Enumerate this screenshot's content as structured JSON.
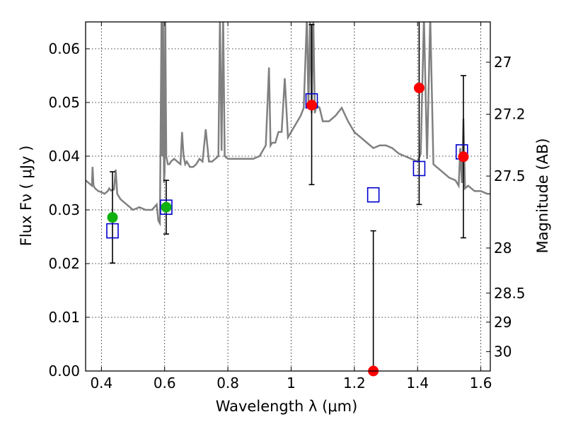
{
  "chart_data": {
    "type": "scatter",
    "title": "",
    "xlabel": "Wavelength  λ (μm)",
    "ylabel": "Flux  Fν  ( μJy )",
    "ylabel_right": "Magnitude (AB)",
    "xlim": [
      0.35,
      1.63
    ],
    "ylim": [
      0.0,
      0.065
    ],
    "grid": true,
    "x_ticks": [
      {
        "value": 0.4,
        "label": "0.4"
      },
      {
        "value": 0.6,
        "label": "0.6"
      },
      {
        "value": 0.8,
        "label": "0.8"
      },
      {
        "value": 1.0,
        "label": "1"
      },
      {
        "value": 1.2,
        "label": "1.2"
      },
      {
        "value": 1.4,
        "label": "1.4"
      },
      {
        "value": 1.6,
        "label": "1.6"
      }
    ],
    "y_ticks": [
      {
        "value": 0.0,
        "label": "0.00"
      },
      {
        "value": 0.01,
        "label": "0.01"
      },
      {
        "value": 0.02,
        "label": "0.02"
      },
      {
        "value": 0.03,
        "label": "0.03"
      },
      {
        "value": 0.04,
        "label": "0.04"
      },
      {
        "value": 0.05,
        "label": "0.05"
      },
      {
        "value": 0.06,
        "label": "0.06"
      }
    ],
    "mag_ticks": [
      {
        "value": 0.0575,
        "label": "27"
      },
      {
        "value": 0.0478,
        "label": "27.2"
      },
      {
        "value": 0.0363,
        "label": "27.5"
      },
      {
        "value": 0.0229,
        "label": "28"
      },
      {
        "value": 0.0145,
        "label": "28.5"
      },
      {
        "value": 0.0091,
        "label": "29"
      },
      {
        "value": 0.0036,
        "label": "30"
      }
    ],
    "spectrum": {
      "color": "#808080",
      "x": [
        0.35,
        0.36,
        0.37,
        0.372,
        0.375,
        0.38,
        0.39,
        0.4,
        0.41,
        0.42,
        0.425,
        0.43,
        0.44,
        0.445,
        0.45,
        0.46,
        0.47,
        0.48,
        0.49,
        0.5,
        0.52,
        0.54,
        0.56,
        0.575,
        0.58,
        0.585,
        0.59,
        0.592,
        0.595,
        0.598,
        0.6,
        0.602,
        0.605,
        0.61,
        0.615,
        0.62,
        0.63,
        0.65,
        0.655,
        0.66,
        0.665,
        0.67,
        0.68,
        0.69,
        0.7,
        0.71,
        0.72,
        0.73,
        0.74,
        0.75,
        0.76,
        0.77,
        0.775,
        0.78,
        0.785,
        0.79,
        0.8,
        0.82,
        0.84,
        0.86,
        0.88,
        0.9,
        0.92,
        0.93,
        0.935,
        0.94,
        0.95,
        0.96,
        0.97,
        0.98,
        0.99,
        1.0,
        1.01,
        1.02,
        1.03,
        1.04,
        1.05,
        1.055,
        1.06,
        1.065,
        1.07,
        1.075,
        1.08,
        1.09,
        1.1,
        1.12,
        1.14,
        1.16,
        1.18,
        1.2,
        1.22,
        1.24,
        1.26,
        1.28,
        1.3,
        1.32,
        1.34,
        1.36,
        1.38,
        1.4,
        1.41,
        1.42,
        1.43,
        1.44,
        1.45,
        1.46,
        1.48,
        1.5,
        1.52,
        1.53,
        1.535,
        1.54,
        1.545,
        1.55,
        1.56,
        1.58,
        1.6,
        1.62,
        1.63
      ],
      "y": [
        0.0355,
        0.035,
        0.0345,
        0.038,
        0.0345,
        0.034,
        0.0335,
        0.0333,
        0.033,
        0.0335,
        0.034,
        0.0336,
        0.0338,
        0.0375,
        0.033,
        0.032,
        0.0315,
        0.031,
        0.0305,
        0.03,
        0.0305,
        0.03,
        0.03,
        0.031,
        0.028,
        0.0275,
        0.066,
        0.04,
        0.066,
        0.035,
        0.037,
        0.066,
        0.04,
        0.0385,
        0.0385,
        0.039,
        0.0395,
        0.0385,
        0.0445,
        0.04,
        0.0385,
        0.039,
        0.038,
        0.038,
        0.0385,
        0.0395,
        0.039,
        0.045,
        0.039,
        0.039,
        0.0395,
        0.04,
        0.066,
        0.041,
        0.066,
        0.04,
        0.0395,
        0.0395,
        0.0395,
        0.0395,
        0.0395,
        0.04,
        0.042,
        0.0565,
        0.042,
        0.0425,
        0.0425,
        0.0445,
        0.0445,
        0.0545,
        0.0435,
        0.0445,
        0.0455,
        0.0465,
        0.0475,
        0.049,
        0.066,
        0.049,
        0.066,
        0.048,
        0.066,
        0.048,
        0.0495,
        0.049,
        0.0465,
        0.0465,
        0.0475,
        0.049,
        0.0465,
        0.0445,
        0.0435,
        0.0425,
        0.0415,
        0.042,
        0.042,
        0.0415,
        0.0405,
        0.04,
        0.0395,
        0.039,
        0.0405,
        0.066,
        0.0395,
        0.066,
        0.0385,
        0.038,
        0.037,
        0.036,
        0.0355,
        0.0345,
        0.0415,
        0.035,
        0.047,
        0.034,
        0.0345,
        0.0335,
        0.0335,
        0.033,
        0.033
      ]
    },
    "green_points": {
      "color": "#10b010",
      "x": [
        0.435,
        0.605
      ],
      "y": [
        0.0286,
        0.0305
      ]
    },
    "red_points": {
      "color": "#ff0000",
      "x": [
        1.065,
        1.26,
        1.405,
        1.545
      ],
      "y": [
        0.0495,
        0.0,
        0.0527,
        0.0399
      ]
    },
    "model_boxes": {
      "color": "#0000cc",
      "x": [
        0.435,
        0.605,
        1.065,
        1.26,
        1.405,
        1.54
      ],
      "y": [
        0.0261,
        0.0305,
        0.0503,
        0.0328,
        0.0377,
        0.0408
      ]
    },
    "error_bars": [
      {
        "x": 0.435,
        "low": 0.0201,
        "high": 0.0371
      },
      {
        "x": 0.605,
        "low": 0.0255,
        "high": 0.0355
      },
      {
        "x": 1.065,
        "low": 0.0347,
        "high": 0.0645
      },
      {
        "x": 1.26,
        "low": 0.0,
        "high": 0.0261
      },
      {
        "x": 1.405,
        "low": 0.031,
        "high": 0.066
      },
      {
        "x": 1.545,
        "low": 0.0248,
        "high": 0.055
      }
    ]
  }
}
